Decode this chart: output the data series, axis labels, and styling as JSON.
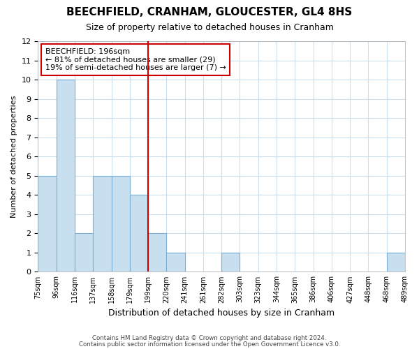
{
  "title": "BEECHFIELD, CRANHAM, GLOUCESTER, GL4 8HS",
  "subtitle": "Size of property relative to detached houses in Cranham",
  "xlabel": "Distribution of detached houses by size in Cranham",
  "ylabel": "Number of detached properties",
  "tick_labels": [
    "75sqm",
    "96sqm",
    "116sqm",
    "137sqm",
    "158sqm",
    "179sqm",
    "199sqm",
    "220sqm",
    "241sqm",
    "261sqm",
    "282sqm",
    "303sqm",
    "323sqm",
    "344sqm",
    "365sqm",
    "386sqm",
    "406sqm",
    "427sqm",
    "448sqm",
    "468sqm",
    "489sqm"
  ],
  "counts": [
    5,
    10,
    2,
    5,
    5,
    4,
    2,
    1,
    0,
    0,
    1,
    0,
    0,
    0,
    0,
    0,
    0,
    0,
    0,
    1
  ],
  "bar_color": "#c8dff0",
  "bar_edge_color": "#7bafd4",
  "marker_line_color": "#cc0000",
  "marker_bin_index": 6,
  "annotation_line1": "BEECHFIELD: 196sqm",
  "annotation_line2": "← 81% of detached houses are smaller (29)",
  "annotation_line3": "19% of semi-detached houses are larger (7) →",
  "annotation_box_edge": "#cc0000",
  "ylim": [
    0,
    12
  ],
  "yticks": [
    0,
    1,
    2,
    3,
    4,
    5,
    6,
    7,
    8,
    9,
    10,
    11,
    12
  ],
  "footer_line1": "Contains HM Land Registry data © Crown copyright and database right 2024.",
  "footer_line2": "Contains public sector information licensed under the Open Government Licence v3.0.",
  "background_color": "#ffffff",
  "grid_color": "#c8dff0",
  "title_fontsize": 11,
  "subtitle_fontsize": 9,
  "ylabel_fontsize": 8,
  "xlabel_fontsize": 9
}
